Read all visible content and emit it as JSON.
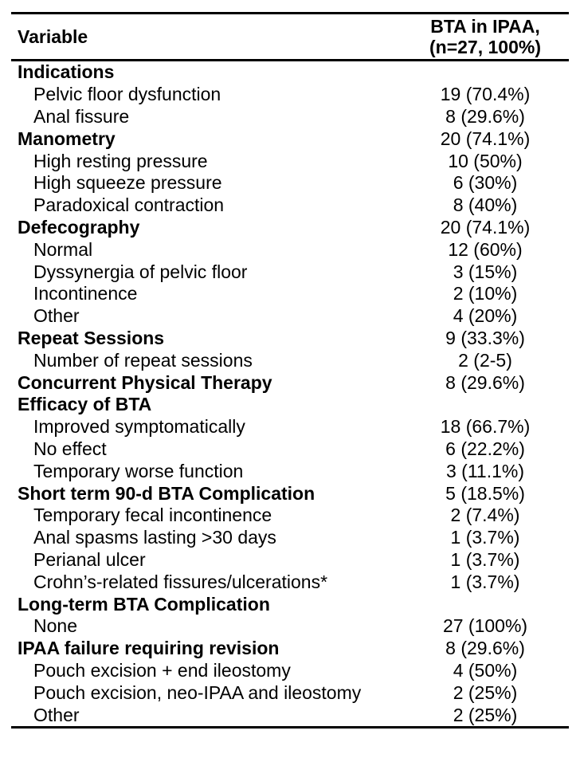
{
  "colors": {
    "text": "#000000",
    "background": "#ffffff",
    "rule": "#000000"
  },
  "table": {
    "header": {
      "variable": "Variable",
      "value_line1": "BTA in IPAA,",
      "value_line2": "(n=27, 100%)"
    },
    "rows": [
      {
        "label": "Indications",
        "value": "",
        "bold": true,
        "indent": false
      },
      {
        "label": "Pelvic floor dysfunction",
        "value": "19 (70.4%)",
        "bold": false,
        "indent": true
      },
      {
        "label": "Anal fissure",
        "value": "8 (29.6%)",
        "bold": false,
        "indent": true
      },
      {
        "label": "Manometry",
        "value": "20 (74.1%)",
        "bold": true,
        "indent": false
      },
      {
        "label": "High resting pressure",
        "value": "10 (50%)",
        "bold": false,
        "indent": true
      },
      {
        "label": "High squeeze pressure",
        "value": "6 (30%)",
        "bold": false,
        "indent": true
      },
      {
        "label": "Paradoxical contraction",
        "value": "8 (40%)",
        "bold": false,
        "indent": true
      },
      {
        "label": "Defecography",
        "value": "20 (74.1%)",
        "bold": true,
        "indent": false
      },
      {
        "label": "Normal",
        "value": "12 (60%)",
        "bold": false,
        "indent": true
      },
      {
        "label": "Dyssynergia of pelvic floor",
        "value": "3 (15%)",
        "bold": false,
        "indent": true
      },
      {
        "label": "Incontinence",
        "value": "2 (10%)",
        "bold": false,
        "indent": true
      },
      {
        "label": "Other",
        "value": "4 (20%)",
        "bold": false,
        "indent": true
      },
      {
        "label": "Repeat Sessions",
        "value": "9 (33.3%)",
        "bold": true,
        "indent": false
      },
      {
        "label": "Number of repeat sessions",
        "value": "2 (2-5)",
        "bold": false,
        "indent": true
      },
      {
        "label": "Concurrent Physical Therapy",
        "value": "8 (29.6%)",
        "bold": true,
        "indent": false
      },
      {
        "label": "Efficacy of BTA",
        "value": "",
        "bold": true,
        "indent": false
      },
      {
        "label": "Improved symptomatically",
        "value": "18 (66.7%)",
        "bold": false,
        "indent": true
      },
      {
        "label": "No effect",
        "value": "6 (22.2%)",
        "bold": false,
        "indent": true
      },
      {
        "label": "Temporary worse function",
        "value": "3 (11.1%)",
        "bold": false,
        "indent": true
      },
      {
        "label": "Short term 90-d BTA Complication",
        "value": "5 (18.5%)",
        "bold": true,
        "indent": false
      },
      {
        "label": "Temporary fecal incontinence",
        "value": "2 (7.4%)",
        "bold": false,
        "indent": true
      },
      {
        "label": "Anal spasms lasting >30 days",
        "value": "1 (3.7%)",
        "bold": false,
        "indent": true
      },
      {
        "label": "Perianal ulcer",
        "value": "1 (3.7%)",
        "bold": false,
        "indent": true
      },
      {
        "label": "Crohn’s-related fissures/ulcerations*",
        "value": "1 (3.7%)",
        "bold": false,
        "indent": true
      },
      {
        "label": "Long-term BTA Complication",
        "value": "",
        "bold": true,
        "indent": false
      },
      {
        "label": "None",
        "value": "27 (100%)",
        "bold": false,
        "indent": true
      },
      {
        "label": "IPAA failure requiring revision",
        "value": "8 (29.6%)",
        "bold": true,
        "indent": false
      },
      {
        "label": "Pouch excision + end ileostomy",
        "value": "4 (50%)",
        "bold": false,
        "indent": true
      },
      {
        "label": "Pouch excision, neo-IPAA and ileostomy",
        "value": "2 (25%)",
        "bold": false,
        "indent": true
      },
      {
        "label": "Other",
        "value": "2 (25%)",
        "bold": false,
        "indent": true
      }
    ]
  }
}
